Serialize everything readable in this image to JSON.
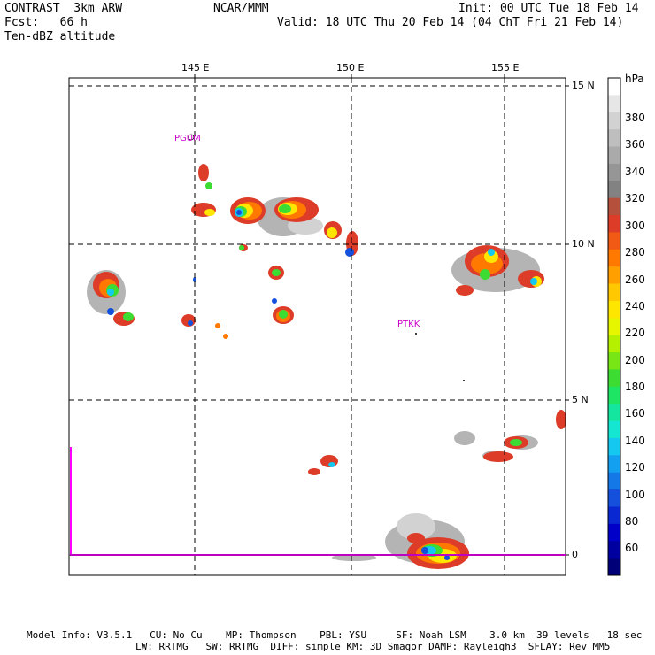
{
  "header": {
    "title": "CONTRAST  3km ARW",
    "forecast": "Fcst:   66 h",
    "field": "Ten-dBZ altitude",
    "center": "NCAR/MMM",
    "init": "Init: 00 UTC Tue 18 Feb 14",
    "valid": "Valid: 18 UTC Thu 20 Feb 14 (04 ChT Fri 21 Feb 14)"
  },
  "map": {
    "lon_labels": [
      "145 E",
      "150 E",
      "155 E"
    ],
    "lat_labels": [
      "15 N",
      "10 N",
      "5 N",
      "0"
    ],
    "stations": [
      "PGUM",
      "PTKK"
    ]
  },
  "colorbar": {
    "unit": "hPa",
    "labels": [
      "380",
      "360",
      "340",
      "320",
      "300",
      "280",
      "260",
      "240",
      "220",
      "200",
      "180",
      "160",
      "140",
      "120",
      "100",
      "80",
      "60"
    ],
    "colors": [
      "#ffffff",
      "#e6e6e6",
      "#d2d2d2",
      "#bebebe",
      "#aaaaaa",
      "#969696",
      "#828282",
      "#b4503c",
      "#dc3c28",
      "#f05a14",
      "#ff7800",
      "#ffa000",
      "#ffc800",
      "#ffe600",
      "#e6f500",
      "#b4f000",
      "#78e614",
      "#3cdc32",
      "#1ee664",
      "#14e6a0",
      "#14e6d2",
      "#14c8f0",
      "#14a0f0",
      "#1478e6",
      "#1450dc",
      "#0a28d2",
      "#0000c8",
      "#0000a0",
      "#000078"
    ]
  },
  "footer": {
    "line1": "Model Info: V3.5.1   CU: No Cu    MP: Thompson    PBL: YSU     SF: Noah LSM    3.0 km  39 levels   18 sec",
    "line2": "LW: RRTMG   SW: RRTMG  DIFF: simple KM: 3D Smagor DAMP: Rayleigh3  SFLAY: Rev MM5"
  }
}
